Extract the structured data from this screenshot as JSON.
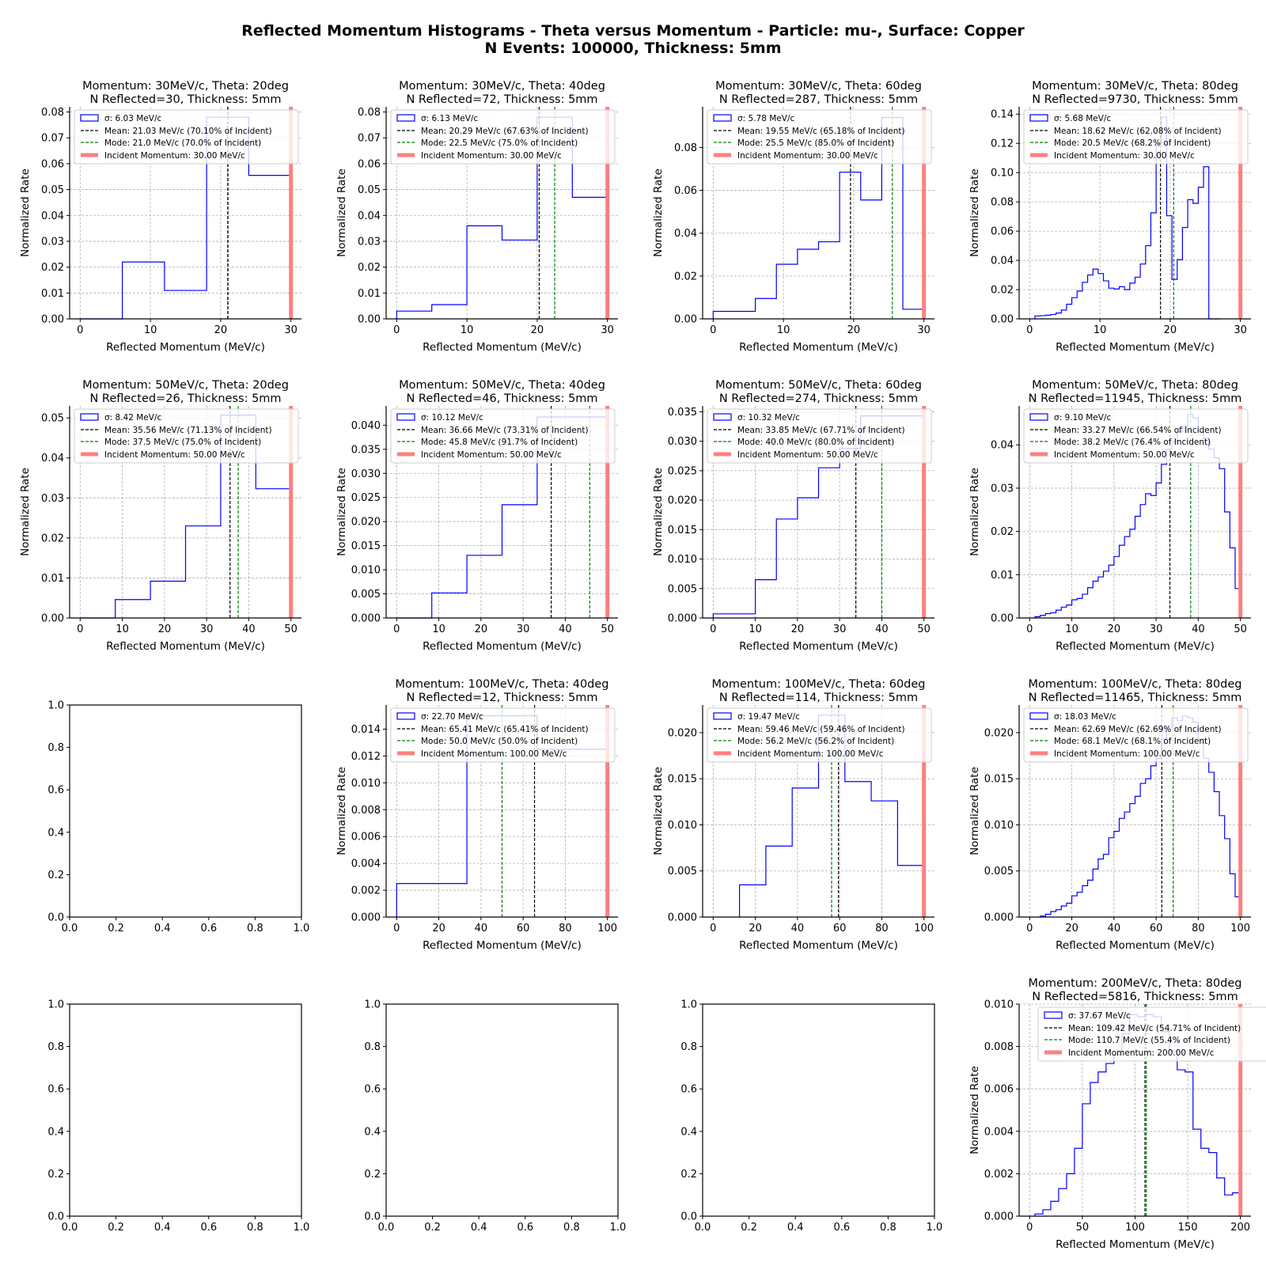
{
  "figure": {
    "suptitle_line1": "Reflected Momentum Histograms - Theta versus Momentum - Particle: mu-, Surface: Copper",
    "suptitle_line2": "N Events: 100000, Thickness: 5mm"
  },
  "colors": {
    "hist": "#0000ff",
    "mean": "#000000",
    "mode": "#008000",
    "incident": "#ff7f7f",
    "grid": "#b0b0b0"
  },
  "chart_data": [
    {
      "row": 0,
      "col": 0,
      "type": "bar",
      "title": "Momentum: 30MeV/c, Theta: 20deg",
      "title2": " N Reflected=30, Thickness: 5mm",
      "xlabel": "Reflected Momentum (MeV/c)",
      "ylabel": "Normalized Rate",
      "xlim": [
        -1.5,
        31.5
      ],
      "ylim": [
        0,
        0.082
      ],
      "xticks": [
        0,
        10,
        20,
        30
      ],
      "yticks": [
        0,
        0.01,
        0.02,
        0.03,
        0.04,
        0.05,
        0.06,
        0.07,
        0.08
      ],
      "ytick_decimals": 2,
      "bin_edges": [
        0,
        6,
        12,
        18,
        24,
        30
      ],
      "values": [
        0,
        0.022,
        0.011,
        0.078,
        0.0555
      ],
      "mean": 21.03,
      "mode": 21.0,
      "incident": 30,
      "legend": [
        "σ: 6.03 MeV/c",
        "Mean: 21.03 MeV/c (70.10% of Incident)",
        "Mode: 21.0 MeV/c (70.0% of Incident)",
        "Incident Momentum: 30.00 MeV/c"
      ]
    },
    {
      "row": 0,
      "col": 1,
      "type": "bar",
      "title": "Momentum: 30MeV/c, Theta: 40deg",
      "title2": " N Reflected=72, Thickness: 5mm",
      "xlabel": "Reflected Momentum (MeV/c)",
      "ylabel": "Normalized Rate",
      "xlim": [
        -1.5,
        31.5
      ],
      "ylim": [
        0,
        0.082
      ],
      "xticks": [
        0,
        10,
        20,
        30
      ],
      "yticks": [
        0,
        0.01,
        0.02,
        0.03,
        0.04,
        0.05,
        0.06,
        0.07,
        0.08
      ],
      "ytick_decimals": 2,
      "bin_edges": [
        0,
        5,
        10,
        15,
        20,
        25,
        30
      ],
      "values": [
        0.003,
        0.0055,
        0.036,
        0.0305,
        0.078,
        0.047
      ],
      "mean": 20.29,
      "mode": 22.5,
      "incident": 30,
      "legend": [
        "σ: 6.13 MeV/c",
        "Mean: 20.29 MeV/c (67.63% of Incident)",
        "Mode: 22.5 MeV/c (75.0% of Incident)",
        "Incident Momentum: 30.00 MeV/c"
      ]
    },
    {
      "row": 0,
      "col": 2,
      "type": "bar",
      "title": "Momentum: 30MeV/c, Theta: 60deg",
      "title2": " N Reflected=287, Thickness: 5mm",
      "xlabel": "Reflected Momentum (MeV/c)",
      "ylabel": "Normalized Rate",
      "xlim": [
        -1.5,
        31.5
      ],
      "ylim": [
        0,
        0.099
      ],
      "xticks": [
        0,
        10,
        20,
        30
      ],
      "yticks": [
        0,
        0.02,
        0.04,
        0.06,
        0.08
      ],
      "ytick_decimals": 2,
      "bin_edges": [
        0,
        6,
        9,
        12,
        15,
        18,
        21,
        24,
        27,
        30
      ],
      "values": [
        0.0035,
        0.0095,
        0.0255,
        0.0325,
        0.036,
        0.0685,
        0.0555,
        0.094,
        0.0045
      ],
      "mean": 19.55,
      "mode": 25.5,
      "incident": 30,
      "legend": [
        "σ: 5.78 MeV/c",
        "Mean: 19.55 MeV/c (65.18% of Incident)",
        "Mode: 25.5 MeV/c (85.0% of Incident)",
        "Incident Momentum: 30.00 MeV/c"
      ]
    },
    {
      "row": 0,
      "col": 3,
      "type": "bar",
      "title": "Momentum: 30MeV/c, Theta: 80deg",
      "title2": " N Reflected=9730, Thickness: 5mm",
      "xlabel": "Reflected Momentum (MeV/c)",
      "ylabel": "Normalized Rate",
      "xlim": [
        -1.5,
        31.5
      ],
      "ylim": [
        0,
        0.145
      ],
      "xticks": [
        0,
        10,
        20,
        30
      ],
      "yticks": [
        0,
        0.02,
        0.04,
        0.06,
        0.08,
        0.1,
        0.12,
        0.14
      ],
      "ytick_decimals": 2,
      "bin_edges": [
        0.75,
        1.5,
        2.25,
        3.0,
        3.75,
        4.5,
        5.25,
        6.0,
        6.75,
        7.5,
        8.25,
        9.0,
        9.75,
        10.5,
        11.25,
        12.0,
        12.75,
        13.5,
        14.25,
        15.0,
        15.75,
        16.5,
        17.25,
        18.0,
        18.75,
        19.5,
        20.25,
        21.0,
        21.75,
        22.5,
        23.25,
        24.0,
        24.75,
        25.5,
        26.25,
        27.0
      ],
      "values": [
        0.002,
        0.0022,
        0.0025,
        0.003,
        0.004,
        0.006,
        0.01,
        0.0145,
        0.019,
        0.025,
        0.03,
        0.034,
        0.031,
        0.026,
        0.021,
        0.0205,
        0.022,
        0.02,
        0.0245,
        0.0285,
        0.0375,
        0.05,
        0.0725,
        0.12,
        0.138,
        0.0705,
        0.027,
        0.0405,
        0.0625,
        0.0815,
        0.079,
        0.09,
        0.104,
        0.0,
        0.0
      ],
      "mean": 18.62,
      "mode": 20.5,
      "incident": 30,
      "legend": [
        "σ: 5.68 MeV/c",
        "Mean: 18.62 MeV/c (62.08% of Incident)",
        "Mode: 20.5 MeV/c (68.2% of Incident)",
        "Incident Momentum: 30.00 MeV/c"
      ]
    },
    {
      "row": 1,
      "col": 0,
      "type": "bar",
      "title": "Momentum: 50MeV/c, Theta: 20deg",
      "title2": " N Reflected=26, Thickness: 5mm",
      "xlabel": "Reflected Momentum (MeV/c)",
      "ylabel": "Normalized Rate",
      "xlim": [
        -2.5,
        52.5
      ],
      "ylim": [
        0,
        0.053
      ],
      "xticks": [
        0,
        10,
        20,
        30,
        40,
        50
      ],
      "yticks": [
        0,
        0.01,
        0.02,
        0.03,
        0.04,
        0.05
      ],
      "ytick_decimals": 2,
      "bin_edges": [
        0,
        8.33,
        16.67,
        25,
        33.33,
        41.67,
        50
      ],
      "values": [
        0,
        0.0046,
        0.0092,
        0.023,
        0.0507,
        0.0323
      ],
      "mean": 35.56,
      "mode": 37.5,
      "incident": 50,
      "legend": [
        "σ: 8.42 MeV/c",
        "Mean: 35.56 MeV/c (71.13% of Incident)",
        "Mode: 37.5 MeV/c (75.0% of Incident)",
        "Incident Momentum: 50.00 MeV/c"
      ]
    },
    {
      "row": 1,
      "col": 1,
      "type": "bar",
      "title": "Momentum: 50MeV/c, Theta: 40deg",
      "title2": " N Reflected=46, Thickness: 5mm",
      "xlabel": "Reflected Momentum (MeV/c)",
      "ylabel": "Normalized Rate",
      "xlim": [
        -2.5,
        52.5
      ],
      "ylim": [
        0,
        0.044
      ],
      "xticks": [
        0,
        10,
        20,
        30,
        40,
        50
      ],
      "yticks": [
        0,
        0.005,
        0.01,
        0.015,
        0.02,
        0.025,
        0.03,
        0.035,
        0.04
      ],
      "ytick_decimals": 3,
      "bin_edges": [
        0,
        8.33,
        16.67,
        25,
        33.33,
        41.67,
        50
      ],
      "values": [
        0,
        0.0052,
        0.013,
        0.0235,
        0.0417,
        0.0417
      ],
      "mean": 36.66,
      "mode": 45.8,
      "incident": 50,
      "legend": [
        "σ: 10.12 MeV/c",
        "Mean: 36.66 MeV/c (73.31% of Incident)",
        "Mode: 45.8 MeV/c (91.7% of Incident)",
        "Incident Momentum: 50.00 MeV/c"
      ]
    },
    {
      "row": 1,
      "col": 2,
      "type": "bar",
      "title": "Momentum: 50MeV/c, Theta: 60deg",
      "title2": " N Reflected=274, Thickness: 5mm",
      "xlabel": "Reflected Momentum (MeV/c)",
      "ylabel": "Normalized Rate",
      "xlim": [
        -2.5,
        52.5
      ],
      "ylim": [
        0,
        0.036
      ],
      "xticks": [
        0,
        10,
        20,
        30,
        40,
        50
      ],
      "yticks": [
        0,
        0.005,
        0.01,
        0.015,
        0.02,
        0.025,
        0.03,
        0.035
      ],
      "ytick_decimals": 3,
      "bin_edges": [
        0,
        10,
        15,
        20,
        25,
        30,
        35,
        40,
        45,
        50
      ],
      "values": [
        0.0007,
        0.0065,
        0.0168,
        0.0204,
        0.0255,
        0.0288,
        0.0343,
        0.0343,
        0.0343
      ],
      "mean": 33.85,
      "mode": 40.0,
      "incident": 50,
      "legend": [
        "σ: 10.32 MeV/c",
        "Mean: 33.85 MeV/c (67.71% of Incident)",
        "Mode: 40.0 MeV/c (80.0% of Incident)",
        "Incident Momentum: 50.00 MeV/c"
      ]
    },
    {
      "row": 1,
      "col": 3,
      "type": "bar",
      "title": "Momentum: 50MeV/c, Theta: 80deg",
      "title2": "N Reflected=11945, Thickness: 5mm",
      "xlabel": "Reflected Momentum (MeV/c)",
      "ylabel": "Normalized Rate",
      "xlim": [
        -2.5,
        52.5
      ],
      "ylim": [
        0,
        0.049
      ],
      "xticks": [
        0,
        10,
        20,
        30,
        40,
        50
      ],
      "yticks": [
        0,
        0.01,
        0.02,
        0.03,
        0.04
      ],
      "ytick_decimals": 2,
      "bin_edges": [
        1.25,
        2.5,
        3.75,
        5,
        6.25,
        7.5,
        8.75,
        10,
        11.25,
        12.5,
        13.75,
        15,
        16.25,
        17.5,
        18.75,
        20,
        21.25,
        22.5,
        23.75,
        25,
        26.25,
        27.5,
        28.75,
        30,
        31.25,
        32.5,
        33.75,
        35,
        36.25,
        37.5,
        38.75,
        40,
        41.25,
        42.5,
        43.75,
        45,
        46.25,
        47.5,
        48.75,
        50
      ],
      "values": [
        0.0003,
        0.0006,
        0.001,
        0.0012,
        0.0018,
        0.0025,
        0.003,
        0.0042,
        0.0045,
        0.0055,
        0.007,
        0.0085,
        0.0095,
        0.0108,
        0.0122,
        0.0142,
        0.0168,
        0.0188,
        0.0205,
        0.0235,
        0.0262,
        0.0287,
        0.0283,
        0.0312,
        0.0355,
        0.039,
        0.0408,
        0.043,
        0.0442,
        0.047,
        0.0462,
        0.043,
        0.0415,
        0.039,
        0.037,
        0.0345,
        0.0245,
        0.0162,
        0.0068
      ],
      "mean": 33.27,
      "mode": 38.2,
      "incident": 50,
      "legend": [
        "σ: 9.10 MeV/c",
        "Mean: 33.27 MeV/c (66.54% of Incident)",
        "Mode: 38.2 MeV/c (76.4% of Incident)",
        "Incident Momentum: 50.00 MeV/c"
      ]
    },
    {
      "row": 2,
      "col": 0,
      "type": "empty",
      "xlim": [
        0,
        1
      ],
      "ylim": [
        0,
        1
      ],
      "xticks": [
        0,
        0.2,
        0.4,
        0.6,
        0.8,
        1.0
      ],
      "yticks": [
        0,
        0.2,
        0.4,
        0.6,
        0.8,
        1.0
      ],
      "ytick_decimals": 1
    },
    {
      "row": 2,
      "col": 1,
      "type": "bar",
      "title": "Momentum: 100MeV/c, Theta: 40deg",
      "title2": " N Reflected=12, Thickness: 5mm",
      "xlabel": "Reflected Momentum (MeV/c)",
      "ylabel": "Normalized Rate",
      "xlim": [
        -5,
        105
      ],
      "ylim": [
        0,
        0.0158
      ],
      "xticks": [
        0,
        20,
        40,
        60,
        80,
        100
      ],
      "yticks": [
        0,
        0.002,
        0.004,
        0.006,
        0.008,
        0.01,
        0.012,
        0.014
      ],
      "ytick_decimals": 3,
      "bin_edges": [
        0,
        33.33,
        66.67,
        100
      ],
      "values": [
        0.0025,
        0.015,
        0.0125
      ],
      "mean": 65.41,
      "mode": 50.0,
      "incident": 100,
      "legend": [
        "σ: 22.70 MeV/c",
        "Mean: 65.41 MeV/c (65.41% of Incident)",
        "Mode: 50.0 MeV/c (50.0% of Incident)",
        "Incident Momentum: 100.00 MeV/c"
      ]
    },
    {
      "row": 2,
      "col": 2,
      "type": "bar",
      "title": "Momentum: 100MeV/c, Theta: 60deg",
      "title2": " N Reflected=114, Thickness: 5mm",
      "xlabel": "Reflected Momentum (MeV/c)",
      "ylabel": "Normalized Rate",
      "xlim": [
        -5,
        105
      ],
      "ylim": [
        0,
        0.023
      ],
      "xticks": [
        0,
        20,
        40,
        60,
        80,
        100
      ],
      "yticks": [
        0,
        0.005,
        0.01,
        0.015,
        0.02
      ],
      "ytick_decimals": 3,
      "bin_edges": [
        12.5,
        25,
        37.5,
        50,
        62.5,
        75,
        87.5,
        100
      ],
      "values": [
        0.0035,
        0.0077,
        0.014,
        0.0219,
        0.0147,
        0.0126,
        0.0056
      ],
      "mean": 59.46,
      "mode": 56.2,
      "incident": 100,
      "legend": [
        "σ: 19.47 MeV/c",
        "Mean: 59.46 MeV/c (59.46% of Incident)",
        "Mode: 56.2 MeV/c (56.2% of Incident)",
        "Incident Momentum: 100.00 MeV/c"
      ]
    },
    {
      "row": 2,
      "col": 3,
      "type": "bar",
      "title": "Momentum: 100MeV/c, Theta: 80deg",
      "title2": "N Reflected=11465, Thickness: 5mm",
      "xlabel": "Reflected Momentum (MeV/c)",
      "ylabel": "Normalized Rate",
      "xlim": [
        -5,
        105
      ],
      "ylim": [
        0,
        0.023
      ],
      "xticks": [
        0,
        20,
        40,
        60,
        80,
        100
      ],
      "yticks": [
        0,
        0.005,
        0.01,
        0.015,
        0.02
      ],
      "ytick_decimals": 3,
      "bin_edges": [
        5,
        7.5,
        10,
        12.5,
        15,
        17.5,
        20,
        22.5,
        25,
        27.5,
        30,
        32.5,
        35,
        37.5,
        40,
        42.5,
        45,
        47.5,
        50,
        52.5,
        55,
        57.5,
        60,
        62.5,
        65,
        67.5,
        70,
        72.5,
        75,
        77.5,
        80,
        82.5,
        85,
        87.5,
        90,
        92.5,
        95,
        97.5,
        100
      ],
      "values": [
        0.0001,
        0.0003,
        0.0006,
        0.0008,
        0.0012,
        0.0015,
        0.0023,
        0.0027,
        0.0034,
        0.004,
        0.0052,
        0.0063,
        0.0068,
        0.0086,
        0.0093,
        0.0107,
        0.0114,
        0.0123,
        0.0131,
        0.0145,
        0.015,
        0.0164,
        0.0172,
        0.0193,
        0.0205,
        0.0216,
        0.0213,
        0.0218,
        0.0216,
        0.0211,
        0.0193,
        0.0172,
        0.0157,
        0.0136,
        0.011,
        0.0085,
        0.0047,
        0.0022
      ],
      "mean": 62.69,
      "mode": 68.1,
      "incident": 100,
      "legend": [
        "σ: 18.03 MeV/c",
        "Mean: 62.69 MeV/c (62.69% of Incident)",
        "Mode: 68.1 MeV/c (68.1% of Incident)",
        "Incident Momentum: 100.00 MeV/c"
      ]
    },
    {
      "row": 3,
      "col": 0,
      "type": "empty",
      "xlim": [
        0,
        1
      ],
      "ylim": [
        0,
        1
      ],
      "xticks": [
        0,
        0.2,
        0.4,
        0.6,
        0.8,
        1.0
      ],
      "yticks": [
        0,
        0.2,
        0.4,
        0.6,
        0.8,
        1.0
      ],
      "ytick_decimals": 1
    },
    {
      "row": 3,
      "col": 1,
      "type": "empty",
      "xlim": [
        0,
        1
      ],
      "ylim": [
        0,
        1
      ],
      "xticks": [
        0,
        0.2,
        0.4,
        0.6,
        0.8,
        1.0
      ],
      "yticks": [
        0,
        0.2,
        0.4,
        0.6,
        0.8,
        1.0
      ],
      "ytick_decimals": 1
    },
    {
      "row": 3,
      "col": 2,
      "type": "empty",
      "xlim": [
        0,
        1
      ],
      "ylim": [
        0,
        1
      ],
      "xticks": [
        0,
        0.2,
        0.4,
        0.6,
        0.8,
        1.0
      ],
      "yticks": [
        0,
        0.2,
        0.4,
        0.6,
        0.8,
        1.0
      ],
      "ytick_decimals": 1
    },
    {
      "row": 3,
      "col": 3,
      "type": "bar",
      "title": "Momentum: 200MeV/c, Theta: 80deg",
      "title2": "N Reflected=5816, Thickness: 5mm",
      "xlabel": "Reflected Momentum (MeV/c)",
      "ylabel": "Normalized Rate",
      "xlim": [
        -10,
        210
      ],
      "ylim": [
        0,
        0.01
      ],
      "xticks": [
        0,
        50,
        100,
        150,
        200
      ],
      "yticks": [
        0,
        0.002,
        0.004,
        0.006,
        0.008,
        0.01
      ],
      "ytick_decimals": 3,
      "bin_edges": [
        5,
        12.5,
        20,
        27.5,
        35,
        42.5,
        50,
        57.5,
        65,
        72.5,
        80,
        87.5,
        95,
        102.5,
        110,
        117.5,
        125,
        132.5,
        140,
        147.5,
        155,
        162.5,
        170,
        177.5,
        185,
        192.5,
        200
      ],
      "values": [
        0.0001,
        0.0003,
        0.0007,
        0.0013,
        0.002,
        0.0032,
        0.0053,
        0.0063,
        0.0068,
        0.0072,
        0.0076,
        0.0086,
        0.0095,
        0.0094,
        0.0095,
        0.0094,
        0.0087,
        0.0078,
        0.0069,
        0.0068,
        0.0041,
        0.0032,
        0.003,
        0.0018,
        0.001,
        0.0011
      ],
      "mean": 109.42,
      "mode": 110.7,
      "incident": 200,
      "legend": [
        "σ: 37.67 MeV/c",
        "Mean: 109.42 MeV/c (54.71% of Incident)",
        "Mode: 110.7 MeV/c (55.4% of Incident)",
        "Incident Momentum: 200.00 MeV/c"
      ]
    }
  ]
}
